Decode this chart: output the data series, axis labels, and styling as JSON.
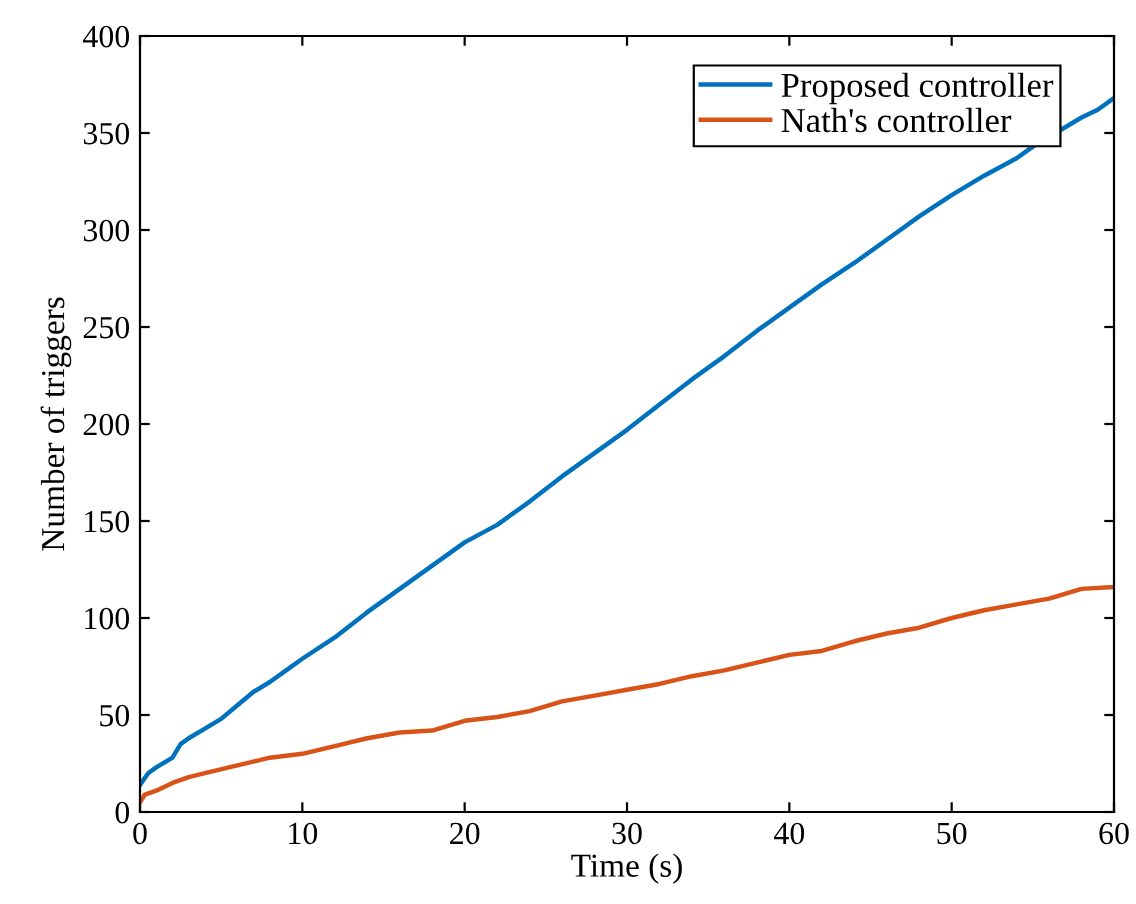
{
  "chart_data": {
    "type": "line",
    "xlabel": "Time (s)",
    "ylabel": "Number of triggers",
    "xlim": [
      0,
      60
    ],
    "ylim": [
      0,
      400
    ],
    "xticks": [
      0,
      10,
      20,
      30,
      40,
      50,
      60
    ],
    "yticks": [
      0,
      50,
      100,
      150,
      200,
      250,
      300,
      350,
      400
    ],
    "grid": false,
    "legend": "top right",
    "series": [
      {
        "name": "Proposed controller",
        "color": "#0072bd",
        "x": [
          0,
          0.5,
          1,
          2,
          2.5,
          3,
          4,
          5,
          6,
          7,
          8,
          9,
          10,
          12,
          14,
          16,
          18,
          20,
          22,
          24,
          26,
          28,
          30,
          32,
          34,
          36,
          38,
          40,
          42,
          44,
          46,
          48,
          50,
          52,
          54,
          55,
          56,
          57,
          58,
          59,
          60
        ],
        "values": [
          14,
          20,
          23,
          28,
          35,
          38,
          43,
          48,
          55,
          62,
          67,
          73,
          79,
          90,
          103,
          115,
          127,
          139,
          148,
          160,
          173,
          185,
          197,
          210,
          223,
          235,
          248,
          260,
          272,
          283,
          295,
          307,
          318,
          328,
          337,
          343,
          null,
          null,
          358,
          362,
          368
        ]
      },
      {
        "name": "Nath's controller",
        "color": "#d95319",
        "x": [
          0,
          0.3,
          1,
          2,
          3,
          4,
          6,
          8,
          10,
          12,
          14,
          16,
          18,
          20,
          22,
          24,
          26,
          28,
          30,
          32,
          34,
          36,
          38,
          40,
          42,
          44,
          46,
          48,
          50,
          52,
          54,
          56,
          58,
          60
        ],
        "values": [
          5,
          9,
          11,
          15,
          18,
          20,
          24,
          28,
          30,
          34,
          38,
          41,
          42,
          47,
          49,
          52,
          57,
          60,
          63,
          66,
          70,
          73,
          77,
          81,
          83,
          88,
          92,
          95,
          100,
          104,
          107,
          110,
          115,
          116
        ]
      }
    ]
  }
}
